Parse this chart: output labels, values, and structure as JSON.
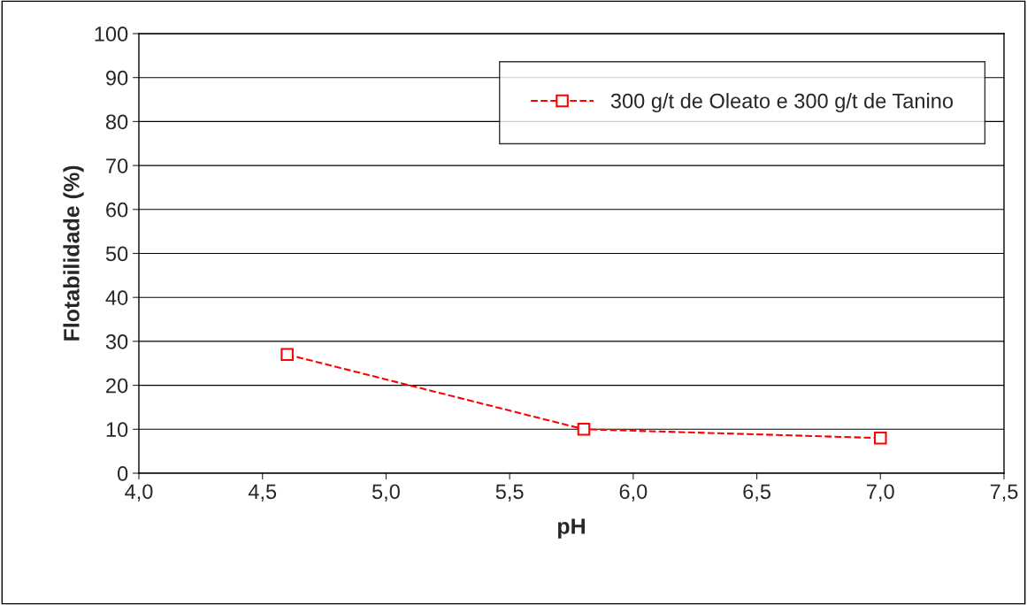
{
  "chart_data": {
    "type": "line",
    "xlabel": "pH",
    "ylabel": "Flotabilidade (%)",
    "series": [
      {
        "name": "300 g/t de Oleato e 300 g/t de Tanino",
        "color": "#ff0000",
        "x": [
          4.6,
          5.8,
          7.0
        ],
        "values": [
          27,
          10,
          8
        ]
      }
    ],
    "xlim": [
      4.0,
      7.5
    ],
    "xticks": [
      {
        "value": 4.0,
        "label": "4,0"
      },
      {
        "value": 4.5,
        "label": "4,5"
      },
      {
        "value": 5.0,
        "label": "5,0"
      },
      {
        "value": 5.5,
        "label": "5,5"
      },
      {
        "value": 6.0,
        "label": "6,0"
      },
      {
        "value": 6.5,
        "label": "6,5"
      },
      {
        "value": 7.0,
        "label": "7,0"
      },
      {
        "value": 7.5,
        "label": "7,5"
      }
    ],
    "ylim": [
      0,
      100
    ],
    "yticks": [
      0,
      10,
      20,
      30,
      40,
      50,
      60,
      70,
      80,
      90,
      100
    ],
    "grid": "y",
    "legend": "top right",
    "marker": "square",
    "line_style": "dashed"
  }
}
